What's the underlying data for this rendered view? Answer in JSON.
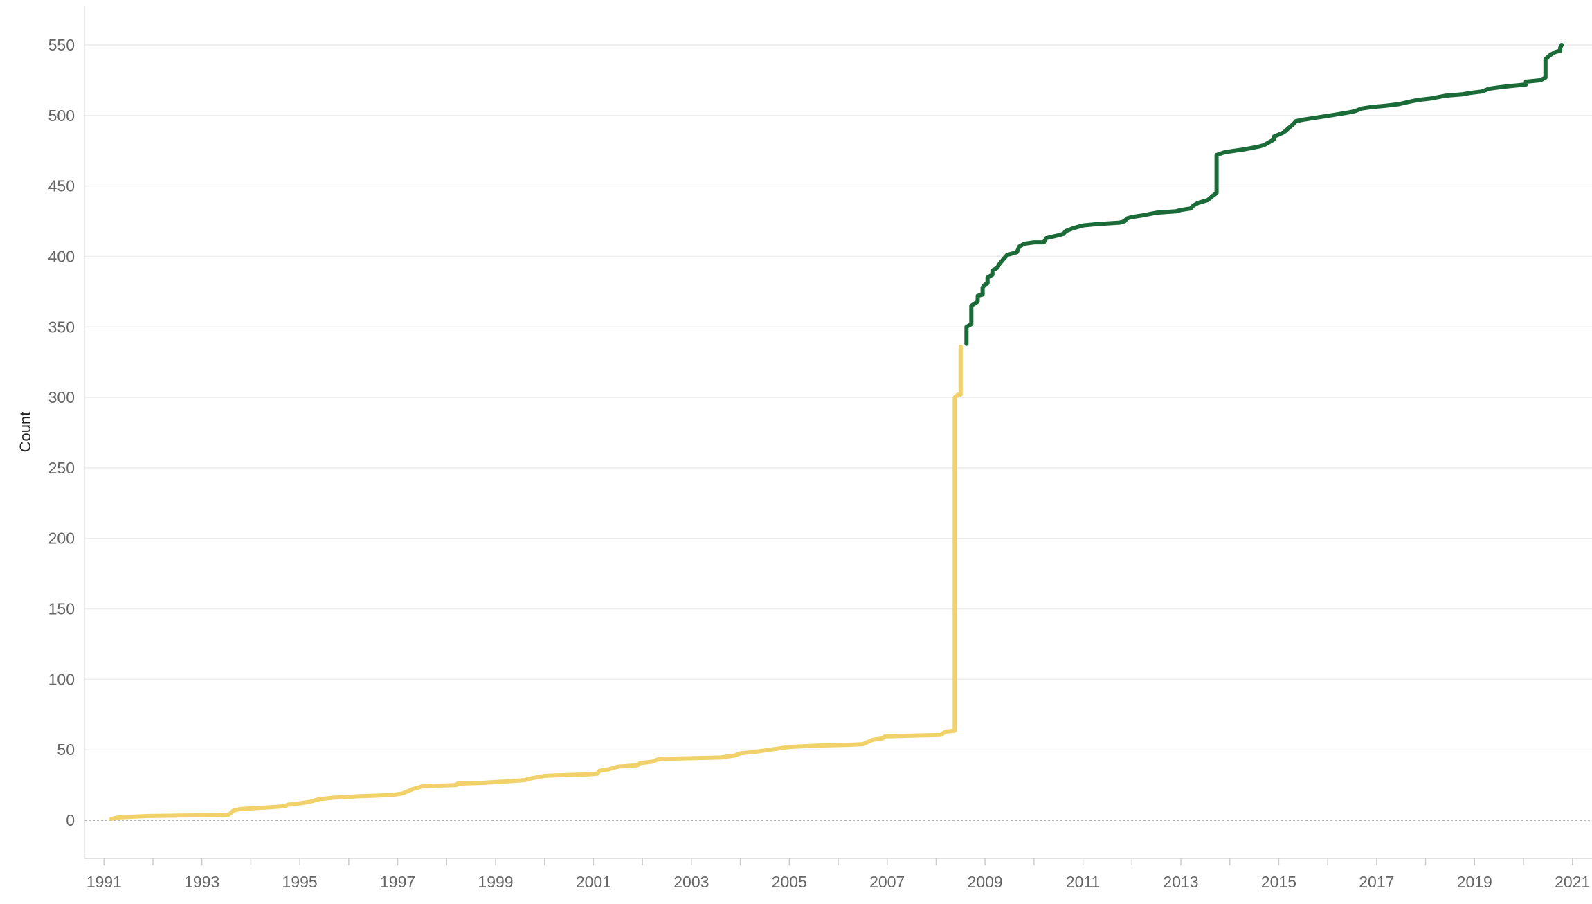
{
  "chart_data": {
    "type": "line",
    "title": "",
    "xlabel": "",
    "ylabel": "Count",
    "ylim": [
      -27,
      578
    ],
    "xlim": [
      1990.6,
      2021.4
    ],
    "y_ticks": [
      0,
      50,
      100,
      150,
      200,
      250,
      300,
      350,
      400,
      450,
      500,
      550
    ],
    "x_ticks": [
      1991,
      1993,
      1995,
      1997,
      1999,
      2001,
      2003,
      2005,
      2007,
      2009,
      2011,
      2013,
      2015,
      2017,
      2019,
      2021
    ],
    "grid": true,
    "zero_line": "dotted",
    "colors": {
      "before": "#f1d26a",
      "after": "#1a6b38",
      "grid": "#ececec",
      "zero": "#9a9a9a"
    },
    "series": [
      {
        "values": [
          [
            1991.15,
            1
          ],
          [
            1991.3,
            2
          ],
          [
            1991.6,
            2.5
          ],
          [
            1991.9,
            3
          ],
          [
            1992.5,
            3.3
          ],
          [
            1993.3,
            3.6
          ],
          [
            1993.55,
            4
          ],
          [
            1993.65,
            7
          ],
          [
            1993.8,
            8
          ],
          [
            1994.3,
            9
          ],
          [
            1994.7,
            10
          ],
          [
            1994.75,
            11
          ],
          [
            1995.0,
            12
          ],
          [
            1995.2,
            13
          ],
          [
            1995.4,
            15
          ],
          [
            1995.7,
            16
          ],
          [
            1996.2,
            17
          ],
          [
            1996.6,
            17.5
          ],
          [
            1996.9,
            18
          ],
          [
            1997.1,
            19
          ],
          [
            1997.3,
            22
          ],
          [
            1997.5,
            24
          ],
          [
            1997.8,
            24.5
          ],
          [
            1998.2,
            25
          ],
          [
            1998.22,
            26
          ],
          [
            1998.7,
            26.5
          ],
          [
            1999.2,
            27.5
          ],
          [
            1999.6,
            28.5
          ],
          [
            1999.7,
            29.5
          ],
          [
            2000.0,
            31.5
          ],
          [
            2000.4,
            32
          ],
          [
            2000.9,
            32.5
          ],
          [
            2001.08,
            33
          ],
          [
            2001.12,
            35
          ],
          [
            2001.3,
            36
          ],
          [
            2001.5,
            38
          ],
          [
            2001.9,
            39
          ],
          [
            2001.95,
            40.5
          ],
          [
            2002.2,
            41.5
          ],
          [
            2002.3,
            43
          ],
          [
            2002.4,
            43.5
          ],
          [
            2003.0,
            44
          ],
          [
            2003.6,
            44.5
          ],
          [
            2003.9,
            46
          ],
          [
            2004.0,
            47.5
          ],
          [
            2004.3,
            48.5
          ],
          [
            2004.6,
            50
          ],
          [
            2005.0,
            52
          ],
          [
            2005.6,
            53
          ],
          [
            2006.2,
            53.5
          ],
          [
            2006.5,
            54
          ],
          [
            2006.7,
            57
          ],
          [
            2006.9,
            58
          ],
          [
            2006.95,
            59.5
          ],
          [
            2007.5,
            60
          ],
          [
            2008.1,
            60.5
          ],
          [
            2008.15,
            62
          ],
          [
            2008.22,
            63
          ],
          [
            2008.38,
            63.5
          ],
          [
            2008.38,
            300
          ],
          [
            2008.45,
            302
          ],
          [
            2008.5,
            302
          ],
          [
            2008.5,
            336
          ]
        ]
      },
      {
        "values": [
          [
            2008.62,
            338
          ],
          [
            2008.62,
            350
          ],
          [
            2008.72,
            352
          ],
          [
            2008.72,
            365
          ],
          [
            2008.85,
            368
          ],
          [
            2008.85,
            372
          ],
          [
            2008.95,
            373
          ],
          [
            2008.95,
            378
          ],
          [
            2009.0,
            380
          ],
          [
            2009.05,
            381
          ],
          [
            2009.05,
            385
          ],
          [
            2009.15,
            387
          ],
          [
            2009.15,
            390
          ],
          [
            2009.25,
            392
          ],
          [
            2009.3,
            395
          ],
          [
            2009.35,
            397
          ],
          [
            2009.4,
            399
          ],
          [
            2009.45,
            401
          ],
          [
            2009.65,
            403
          ],
          [
            2009.7,
            407
          ],
          [
            2009.8,
            409
          ],
          [
            2010.0,
            410
          ],
          [
            2010.2,
            410
          ],
          [
            2010.25,
            413
          ],
          [
            2010.5,
            415
          ],
          [
            2010.6,
            416
          ],
          [
            2010.65,
            418
          ],
          [
            2010.8,
            420
          ],
          [
            2011.0,
            422
          ],
          [
            2011.3,
            423
          ],
          [
            2011.75,
            424
          ],
          [
            2011.85,
            425
          ],
          [
            2011.9,
            427
          ],
          [
            2012.0,
            428
          ],
          [
            2012.2,
            429
          ],
          [
            2012.5,
            431
          ],
          [
            2012.9,
            432
          ],
          [
            2013.0,
            433
          ],
          [
            2013.2,
            434
          ],
          [
            2013.25,
            436
          ],
          [
            2013.35,
            438
          ],
          [
            2013.55,
            440
          ],
          [
            2013.65,
            443
          ],
          [
            2013.73,
            445
          ],
          [
            2013.73,
            472
          ],
          [
            2013.9,
            474
          ],
          [
            2014.3,
            476
          ],
          [
            2014.45,
            477
          ],
          [
            2014.6,
            478
          ],
          [
            2014.7,
            479
          ],
          [
            2014.8,
            481
          ],
          [
            2014.9,
            483
          ],
          [
            2014.9,
            485
          ],
          [
            2015.1,
            488
          ],
          [
            2015.2,
            491
          ],
          [
            2015.3,
            494
          ],
          [
            2015.35,
            496
          ],
          [
            2015.5,
            497
          ],
          [
            2016.05,
            500
          ],
          [
            2016.4,
            502
          ],
          [
            2016.55,
            503
          ],
          [
            2016.7,
            505
          ],
          [
            2016.9,
            506
          ],
          [
            2017.2,
            507
          ],
          [
            2017.45,
            508
          ],
          [
            2017.7,
            510
          ],
          [
            2017.85,
            511
          ],
          [
            2018.1,
            512
          ],
          [
            2018.4,
            514
          ],
          [
            2018.75,
            515
          ],
          [
            2018.9,
            516
          ],
          [
            2019.15,
            517
          ],
          [
            2019.3,
            519
          ],
          [
            2019.5,
            520
          ],
          [
            2019.75,
            521
          ],
          [
            2019.9,
            521.5
          ],
          [
            2020.05,
            522
          ],
          [
            2020.05,
            524
          ],
          [
            2020.35,
            525
          ],
          [
            2020.45,
            527
          ],
          [
            2020.45,
            540
          ],
          [
            2020.55,
            543
          ],
          [
            2020.65,
            545
          ],
          [
            2020.75,
            546
          ],
          [
            2020.75,
            548
          ],
          [
            2020.78,
            550
          ]
        ]
      }
    ]
  }
}
